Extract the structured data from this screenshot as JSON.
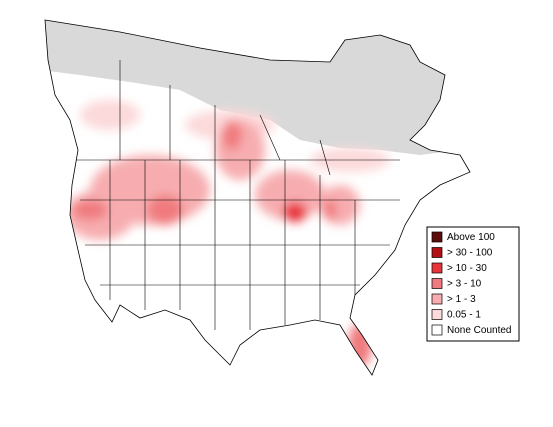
{
  "legend": {
    "items": [
      {
        "label": "Above 100",
        "color": "#5c0b0b"
      },
      {
        "label": "> 30 - 100",
        "color": "#b40f14"
      },
      {
        "label": "> 10 - 30",
        "color": "#e8333a"
      },
      {
        "label": "> 3 - 10",
        "color": "#f07a7e"
      },
      {
        "label": "> 1 - 3",
        "color": "#f7adb0"
      },
      {
        "label": "0.05 - 1",
        "color": "#fcd9da"
      },
      {
        "label": "None Counted",
        "color": "#ffffff"
      }
    ]
  }
}
